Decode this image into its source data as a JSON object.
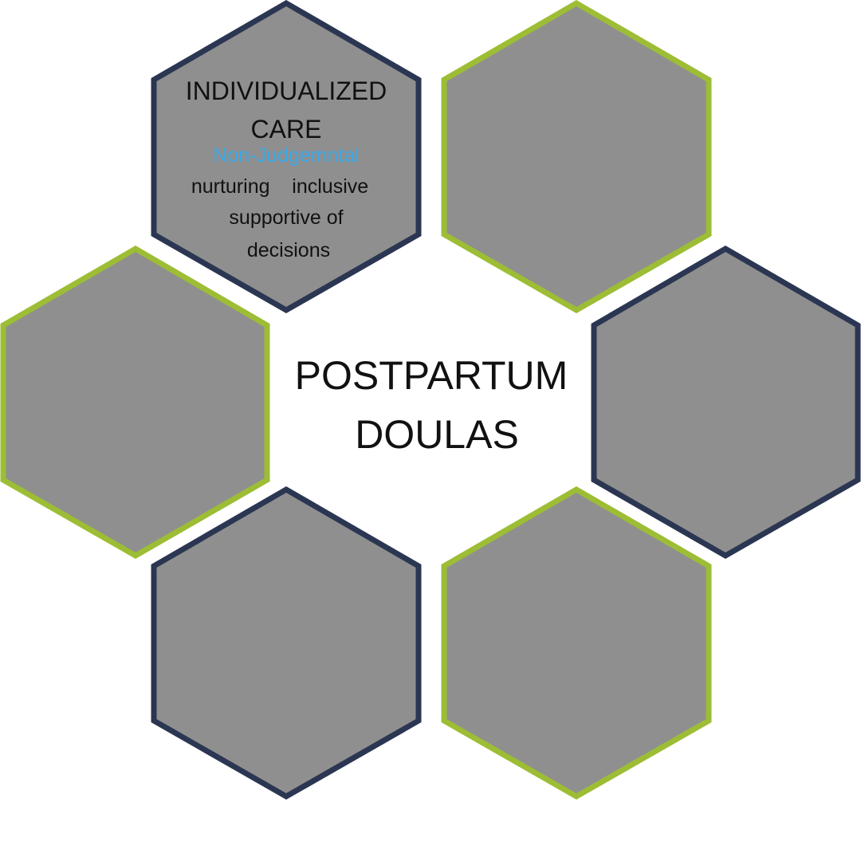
{
  "colors": {
    "hex_fill": "#8f8f8f",
    "navy_border": "#2b3652",
    "green_border": "#9dbd35",
    "accent_text": "#3aa8e6",
    "text": "#111111",
    "background": "#ffffff"
  },
  "center": {
    "line1": "POSTPARTUM",
    "line2": "DOULAS"
  },
  "hexagons": [
    {
      "id": "top-left",
      "border": "navy",
      "title_line1": "INDIVIDUALIZED",
      "title_line2": "CARE",
      "accent_line": "Non-Judgemntal",
      "detail_line1": "nurturing    inclusive",
      "detail_line2": "supportive of",
      "detail_line3": "decisions"
    },
    {
      "id": "top-right",
      "border": "green"
    },
    {
      "id": "middle-left",
      "border": "green"
    },
    {
      "id": "middle-right",
      "border": "navy"
    },
    {
      "id": "bottom-left",
      "border": "navy"
    },
    {
      "id": "bottom-right",
      "border": "green"
    }
  ]
}
